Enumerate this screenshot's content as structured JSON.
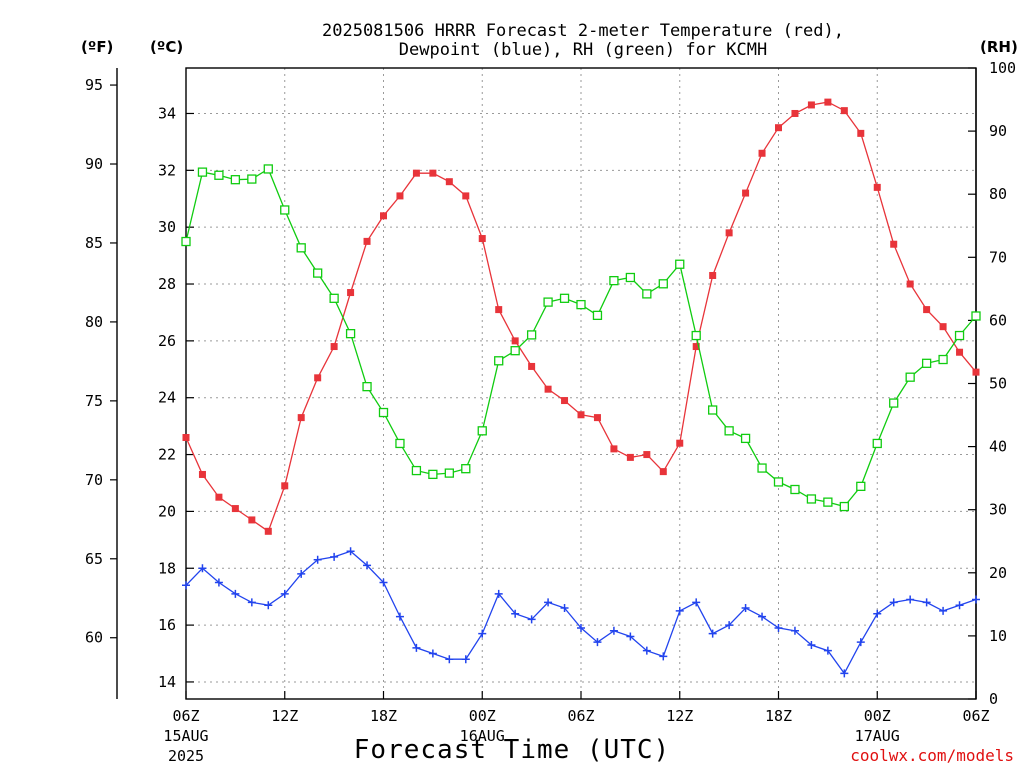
{
  "chart_data": {
    "type": "line",
    "title_line1": "2025081506 HRRR Forecast 2-meter Temperature (red),",
    "title_line2": "Dewpoint (blue), RH (green) for KCMH",
    "xlabel": "Forecast Time (UTC)",
    "credit": "coolwx.com/models",
    "axes": {
      "fahrenheit_label": "(ºF)",
      "celsius_label": "(ºC)",
      "rh_label": "(RH)",
      "celsius_range": [
        13.4,
        35.6
      ],
      "celsius_ticks": [
        14,
        16,
        18,
        20,
        22,
        24,
        26,
        28,
        30,
        32,
        34
      ],
      "fahrenheit_ticks": [
        60,
        65,
        70,
        75,
        80,
        85,
        90,
        95
      ],
      "rh_range": [
        0,
        100
      ],
      "rh_ticks": [
        0,
        10,
        20,
        30,
        40,
        50,
        60,
        70,
        80,
        90,
        100
      ],
      "forecast_hours_range": [
        0,
        48
      ]
    },
    "x_ticks": [
      {
        "hour": 0,
        "label": "06Z",
        "date": "15AUG",
        "year": "2025"
      },
      {
        "hour": 6,
        "label": "12Z",
        "date": "",
        "year": ""
      },
      {
        "hour": 12,
        "label": "18Z",
        "date": "",
        "year": ""
      },
      {
        "hour": 18,
        "label": "00Z",
        "date": "16AUG",
        "year": ""
      },
      {
        "hour": 24,
        "label": "06Z",
        "date": "",
        "year": ""
      },
      {
        "hour": 30,
        "label": "12Z",
        "date": "",
        "year": ""
      },
      {
        "hour": 36,
        "label": "18Z",
        "date": "",
        "year": ""
      },
      {
        "hour": 42,
        "label": "00Z",
        "date": "17AUG",
        "year": ""
      },
      {
        "hour": 48,
        "label": "06Z",
        "date": "",
        "year": ""
      }
    ],
    "grid": true,
    "series": [
      {
        "color": "#e8343a",
        "marker": "filled-square",
        "axis": "celsius",
        "values": [
          22.6,
          21.3,
          20.5,
          20.1,
          19.7,
          19.3,
          20.9,
          23.3,
          24.7,
          25.8,
          27.7,
          29.5,
          30.4,
          31.1,
          31.9,
          31.9,
          31.6,
          31.1,
          29.6,
          27.1,
          26.0,
          25.1,
          24.3,
          23.9,
          23.4,
          23.3,
          22.2,
          21.9,
          22.0,
          21.4,
          22.4,
          25.8,
          28.3,
          29.8,
          31.2,
          32.6,
          33.5,
          34.0,
          34.3,
          34.4,
          34.1,
          33.3,
          31.4,
          29.4,
          28.0,
          27.1,
          26.5,
          25.6,
          24.9
        ]
      },
      {
        "color": "#2244ee",
        "marker": "plus",
        "axis": "celsius",
        "values": [
          17.4,
          18.0,
          17.5,
          17.1,
          16.8,
          16.7,
          17.1,
          17.8,
          18.3,
          18.4,
          18.6,
          18.1,
          17.5,
          16.3,
          15.2,
          15.0,
          14.8,
          14.8,
          15.7,
          17.1,
          16.4,
          16.2,
          16.8,
          16.6,
          15.9,
          15.4,
          15.8,
          15.6,
          15.1,
          14.9,
          16.5,
          16.8,
          15.7,
          16.0,
          16.6,
          16.3,
          15.9,
          15.8,
          15.3,
          15.1,
          14.3,
          15.4,
          16.4,
          16.8,
          16.9,
          16.8,
          16.5,
          16.7,
          16.9
        ]
      },
      {
        "color": "#10cc10",
        "marker": "open-square",
        "axis": "rh",
        "values": [
          72.5,
          83.5,
          83.0,
          82.3,
          82.4,
          84.0,
          77.5,
          71.5,
          67.5,
          63.5,
          57.9,
          49.5,
          45.4,
          40.5,
          36.2,
          35.6,
          35.8,
          36.5,
          42.5,
          53.6,
          55.2,
          57.7,
          62.9,
          63.5,
          62.5,
          60.8,
          66.3,
          66.8,
          64.2,
          65.8,
          68.9,
          57.6,
          45.8,
          42.5,
          41.3,
          36.6,
          34.4,
          33.2,
          31.7,
          31.2,
          30.5,
          33.7,
          40.5,
          46.9,
          51.0,
          53.2,
          53.8,
          57.6,
          60.7
        ]
      }
    ]
  }
}
